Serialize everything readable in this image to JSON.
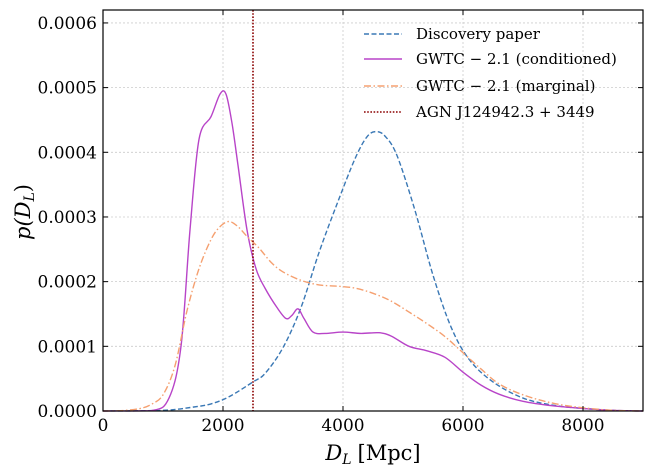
{
  "chart_data": {
    "type": "line",
    "xlabel_main": "D",
    "xlabel_sub": "L",
    "xlabel_unit": "[Mpc]",
    "ylabel_main": "p(D",
    "ylabel_sub": "L",
    "ylabel_close": ")",
    "xlim": [
      0,
      9000
    ],
    "ylim": [
      0,
      0.00062
    ],
    "x_ticks": [
      0,
      2000,
      4000,
      6000,
      8000
    ],
    "x_tick_labels": [
      "0",
      "2000",
      "4000",
      "6000",
      "8000"
    ],
    "y_ticks": [
      0,
      0.0001,
      0.0002,
      0.0003,
      0.0004,
      0.0005,
      0.0006
    ],
    "y_tick_labels": [
      "0.0000",
      "0.0001",
      "0.0002",
      "0.0003",
      "0.0004",
      "0.0005",
      "0.0006"
    ],
    "grid": true,
    "legend_position": "top-right",
    "vline": {
      "name": "AGN J124942.3 + 3449",
      "x": 2500,
      "color": "#8b0000"
    },
    "series": [
      {
        "name": "Discovery paper",
        "color": "#3a78b5",
        "style": "dashed",
        "x": [
          0,
          1000,
          1500,
          1800,
          2100,
          2500,
          2700,
          3000,
          3300,
          3600,
          3900,
          4200,
          4400,
          4550,
          4700,
          4900,
          5200,
          5500,
          5800,
          6100,
          6500,
          7000,
          7500,
          8000,
          8500,
          9000
        ],
        "y": [
          0,
          1e-06,
          6e-06,
          1.1e-05,
          2.2e-05,
          4.5e-05,
          5.8e-05,
          9.8e-05,
          0.00016,
          0.000245,
          0.00032,
          0.00039,
          0.000424,
          0.000432,
          0.000425,
          0.000395,
          0.00031,
          0.00021,
          0.00013,
          8e-05,
          4.5e-05,
          2e-05,
          9e-06,
          4e-06,
          1e-06,
          0
        ]
      },
      {
        "name": "GWTC − 2.1 (conditioned)",
        "color": "#b844c8",
        "style": "solid",
        "x": [
          0,
          800,
          1100,
          1300,
          1450,
          1600,
          1800,
          1950,
          2050,
          2150,
          2250,
          2400,
          2550,
          2700,
          2900,
          3050,
          3150,
          3250,
          3350,
          3500,
          3700,
          4000,
          4300,
          4600,
          4800,
          5100,
          5400,
          5700,
          6000,
          6300,
          6600,
          7000,
          7500,
          8000,
          8500,
          9000
        ],
        "y": [
          0,
          5e-07,
          2e-05,
          0.0001,
          0.00028,
          0.00042,
          0.000455,
          0.00049,
          0.00049,
          0.000445,
          0.00038,
          0.00028,
          0.00022,
          0.00019,
          0.00016,
          0.000143,
          0.000148,
          0.000158,
          0.000143,
          0.000122,
          0.00012,
          0.000122,
          0.00012,
          0.000121,
          0.000116,
          0.0001,
          9.3e-05,
          8.3e-05,
          6e-05,
          4e-05,
          2.6e-05,
          1.5e-05,
          8e-06,
          4e-06,
          1e-06,
          0
        ]
      },
      {
        "name": "GWTC − 2.1 (marginal)",
        "color": "#f5a070",
        "style": "dashdot",
        "x": [
          0,
          300,
          600,
          800,
          1000,
          1200,
          1400,
          1600,
          1800,
          1950,
          2100,
          2250,
          2400,
          2600,
          2800,
          3000,
          3300,
          3600,
          3900,
          4200,
          4500,
          4800,
          5100,
          5400,
          5700,
          6000,
          6300,
          6600,
          7000,
          7500,
          8000,
          8500,
          9000
        ],
        "y": [
          0,
          5e-07,
          3.5e-06,
          1e-05,
          2.5e-05,
          7e-05,
          0.000155,
          0.00022,
          0.000265,
          0.000285,
          0.000293,
          0.000285,
          0.00027,
          0.000252,
          0.00023,
          0.000215,
          0.000202,
          0.000195,
          0.000193,
          0.00019,
          0.000182,
          0.00017,
          0.000153,
          0.000135,
          0.000115,
          9e-05,
          6.5e-05,
          4.2e-05,
          2.5e-05,
          1.2e-05,
          5e-06,
          1e-06,
          0
        ]
      }
    ]
  }
}
